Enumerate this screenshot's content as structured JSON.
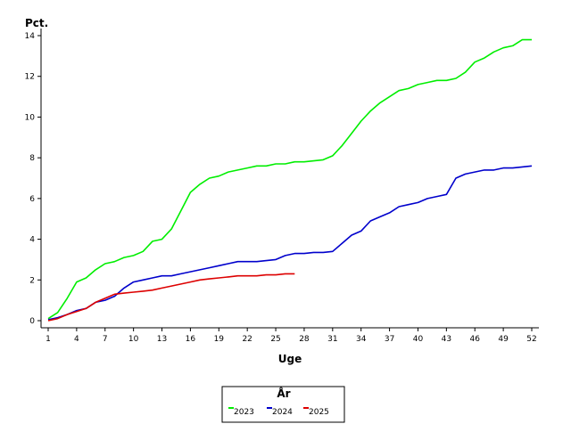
{
  "chart_data": {
    "type": "line",
    "title": "",
    "ylabel": "Pct.",
    "xlabel": "Uge",
    "xlim": [
      1,
      52
    ],
    "ylim": [
      0,
      14
    ],
    "xticks": [
      1,
      4,
      7,
      10,
      13,
      16,
      19,
      22,
      25,
      28,
      31,
      34,
      37,
      40,
      43,
      46,
      49,
      52
    ],
    "yticks": [
      0,
      2,
      4,
      6,
      8,
      10,
      12,
      14
    ],
    "grid": false,
    "legend": {
      "title": "År",
      "position": "bottom-center"
    },
    "series": [
      {
        "name": "2023",
        "color": "#00ee00",
        "x": [
          1,
          2,
          3,
          4,
          5,
          6,
          7,
          8,
          9,
          10,
          11,
          12,
          13,
          14,
          15,
          16,
          17,
          18,
          19,
          20,
          21,
          22,
          23,
          24,
          25,
          26,
          27,
          28,
          29,
          30,
          31,
          32,
          33,
          34,
          35,
          36,
          37,
          38,
          39,
          40,
          41,
          42,
          43,
          44,
          45,
          46,
          47,
          48,
          49,
          50,
          51,
          52
        ],
        "y": [
          0.1,
          0.4,
          1.1,
          1.9,
          2.1,
          2.5,
          2.8,
          2.9,
          3.1,
          3.2,
          3.4,
          3.9,
          4.0,
          4.5,
          5.4,
          6.3,
          6.7,
          7.0,
          7.1,
          7.3,
          7.4,
          7.5,
          7.6,
          7.6,
          7.7,
          7.7,
          7.8,
          7.8,
          7.85,
          7.9,
          8.1,
          8.6,
          9.2,
          9.8,
          10.3,
          10.7,
          11.0,
          11.3,
          11.4,
          11.6,
          11.7,
          11.8,
          11.8,
          11.9,
          12.2,
          12.7,
          12.9,
          13.2,
          13.4,
          13.5,
          13.8,
          13.8
        ]
      },
      {
        "name": "2024",
        "color": "#0000cc",
        "x": [
          1,
          2,
          3,
          4,
          5,
          6,
          7,
          8,
          9,
          10,
          11,
          12,
          13,
          14,
          15,
          16,
          17,
          18,
          19,
          20,
          21,
          22,
          23,
          24,
          25,
          26,
          27,
          28,
          29,
          30,
          31,
          32,
          33,
          34,
          35,
          36,
          37,
          38,
          39,
          40,
          41,
          42,
          43,
          44,
          45,
          46,
          47,
          48,
          49,
          50,
          51,
          52
        ],
        "y": [
          0.05,
          0.15,
          0.3,
          0.5,
          0.6,
          0.9,
          1.0,
          1.2,
          1.6,
          1.9,
          2.0,
          2.1,
          2.2,
          2.2,
          2.3,
          2.4,
          2.5,
          2.6,
          2.7,
          2.8,
          2.9,
          2.9,
          2.9,
          2.95,
          3.0,
          3.2,
          3.3,
          3.3,
          3.35,
          3.35,
          3.4,
          3.8,
          4.2,
          4.4,
          4.9,
          5.1,
          5.3,
          5.6,
          5.7,
          5.8,
          6.0,
          6.1,
          6.2,
          7.0,
          7.2,
          7.3,
          7.4,
          7.4,
          7.5,
          7.5,
          7.55,
          7.6
        ]
      },
      {
        "name": "2025",
        "color": "#dd0000",
        "x": [
          1,
          2,
          3,
          4,
          5,
          6,
          7,
          8,
          9,
          10,
          11,
          12,
          13,
          14,
          15,
          16,
          17,
          18,
          19,
          20,
          21,
          22,
          23,
          24,
          25,
          26,
          27
        ],
        "y": [
          0.0,
          0.1,
          0.3,
          0.45,
          0.6,
          0.9,
          1.1,
          1.3,
          1.35,
          1.4,
          1.45,
          1.5,
          1.6,
          1.7,
          1.8,
          1.9,
          2.0,
          2.05,
          2.1,
          2.15,
          2.2,
          2.2,
          2.2,
          2.25,
          2.25,
          2.3,
          2.3
        ]
      }
    ]
  }
}
